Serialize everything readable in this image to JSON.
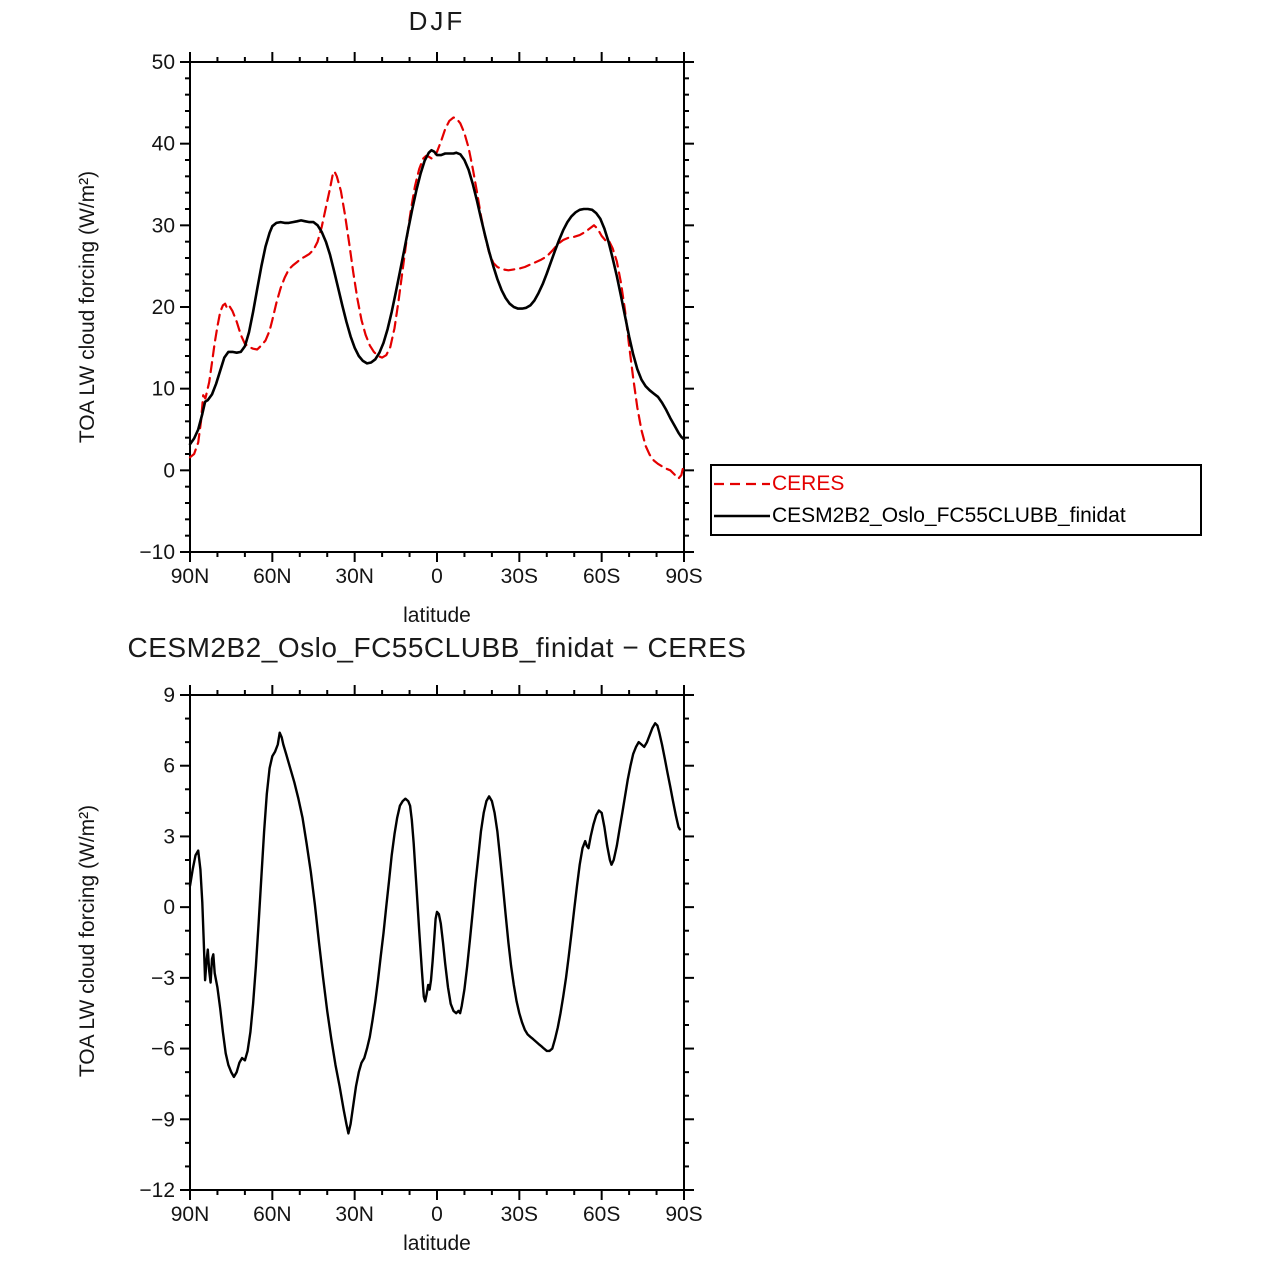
{
  "figure": {
    "background": "#ffffff",
    "frame_color": "#000000",
    "text_color": "#141414"
  },
  "chart_data": [
    {
      "type": "line",
      "title": "DJF",
      "xlabel": "latitude",
      "ylabel": "TOA LW cloud forcing (W/m²)",
      "xlim": [
        90,
        -90
      ],
      "ylim": [
        -10,
        50
      ],
      "xticks": [
        90,
        60,
        30,
        0,
        -30,
        -60,
        -90
      ],
      "xticklabels": [
        "90N",
        "60N",
        "30N",
        "0",
        "30S",
        "60S",
        "90S"
      ],
      "x_minor_interval": 10,
      "yticks": [
        -10,
        0,
        10,
        20,
        30,
        40,
        50
      ],
      "yticklabels": [
        "−10",
        "0",
        "10",
        "20",
        "30",
        "40",
        "50"
      ],
      "y_minor_per_major": 4,
      "grid": false,
      "legend_position": "outside-right-below",
      "series": [
        {
          "name": "CERES",
          "color": "#e40000",
          "dash": [
            10,
            6
          ],
          "width": 2.2,
          "x": [
            90,
            88.5,
            87,
            86,
            85.2,
            84.4,
            83,
            82,
            81,
            80,
            79,
            78,
            77.2,
            76.4,
            75.6,
            74.5,
            73,
            71.5,
            70,
            68.5,
            67,
            65.5,
            64,
            62.5,
            61,
            60,
            58.5,
            57,
            55.5,
            54,
            52.5,
            51,
            49.5,
            48,
            46.5,
            45,
            43.5,
            42,
            40.5,
            39,
            38,
            37.4,
            36.5,
            35,
            33.5,
            32,
            30.5,
            29,
            27.5,
            26,
            24.5,
            23,
            21.5,
            20,
            18.5,
            17,
            15.5,
            14,
            12.5,
            11,
            9.5,
            8,
            6.5,
            5,
            4,
            3,
            2,
            1,
            0,
            -1.5,
            -3,
            -4.5,
            -6,
            -7,
            -8.5,
            -10,
            -11.5,
            -13,
            -14.5,
            -16,
            -17.5,
            -19,
            -20.5,
            -22,
            -24,
            -26,
            -28,
            -30,
            -32,
            -34,
            -36,
            -38,
            -40,
            -42,
            -44,
            -46,
            -48,
            -50,
            -52,
            -54,
            -56,
            -57.2,
            -58.5,
            -60,
            -61.5,
            -62.5,
            -64,
            -65.5,
            -67,
            -68.5,
            -70,
            -71.5,
            -73,
            -74.5,
            -76,
            -77.5,
            -79,
            -80.5,
            -82,
            -83.5,
            -85,
            -86.5,
            -88,
            -89,
            -90
          ],
          "values": [
            1.6,
            2.0,
            3.4,
            6.0,
            9.2,
            8.8,
            10.8,
            13.2,
            15.6,
            17.6,
            19.4,
            20.2,
            20.4,
            19.8,
            20.1,
            19.5,
            18.2,
            16.6,
            15.5,
            15.1,
            14.9,
            14.8,
            15.3,
            15.9,
            17.1,
            18.4,
            20.5,
            22.3,
            23.6,
            24.6,
            25.1,
            25.5,
            25.9,
            26.2,
            26.5,
            27.0,
            28.0,
            29.8,
            32.2,
            34.5,
            36.2,
            36.6,
            36.0,
            34.2,
            31.2,
            27.8,
            24.2,
            21.0,
            18.4,
            16.6,
            15.3,
            14.5,
            14.0,
            13.8,
            14.1,
            15.1,
            17.4,
            20.8,
            24.6,
            28.4,
            31.9,
            34.8,
            36.9,
            38.2,
            38.5,
            38.4,
            38.2,
            38.4,
            39.0,
            40.3,
            41.8,
            42.8,
            43.2,
            43.1,
            42.5,
            41.3,
            39.5,
            37.0,
            34.2,
            31.2,
            28.7,
            26.7,
            25.4,
            24.9,
            24.6,
            24.5,
            24.6,
            24.7,
            24.9,
            25.2,
            25.5,
            25.8,
            26.2,
            26.9,
            27.7,
            28.2,
            28.5,
            28.6,
            28.8,
            29.2,
            29.7,
            30.0,
            29.6,
            28.7,
            28.1,
            28.2,
            27.2,
            25.6,
            23.0,
            19.6,
            15.3,
            11.3,
            7.7,
            4.9,
            3.0,
            1.9,
            1.2,
            0.8,
            0.5,
            0.2,
            0.0,
            -0.5,
            -1.0,
            -0.6,
            0.8
          ]
        },
        {
          "name": "CESM2B2_Oslo_FC55CLUBB_finidat",
          "color": "#000000",
          "dash": null,
          "width": 2.6,
          "x": [
            90,
            88.5,
            87,
            85.5,
            84.5,
            83.5,
            82,
            80.5,
            79,
            77.5,
            76,
            74.5,
            73,
            71.5,
            70,
            68.5,
            67,
            65.5,
            64,
            62.5,
            61,
            60,
            58.5,
            57,
            55.5,
            54,
            52.5,
            51,
            49.5,
            48,
            46.5,
            45,
            43.5,
            42,
            40.5,
            39,
            37.5,
            36,
            34.5,
            33,
            31.5,
            30,
            28.5,
            27,
            25.5,
            24,
            22.5,
            21,
            19.5,
            18,
            16.5,
            15,
            13.5,
            12,
            10.5,
            9,
            7.5,
            6,
            4.5,
            3,
            2,
            1,
            0,
            -1.5,
            -3,
            -4.5,
            -6,
            -7,
            -8.5,
            -10,
            -11.5,
            -13,
            -14.5,
            -16,
            -17.5,
            -19,
            -20.5,
            -22,
            -23.5,
            -25,
            -26.5,
            -28,
            -29.5,
            -31,
            -32.5,
            -34,
            -35.5,
            -37,
            -38.5,
            -40,
            -41.5,
            -43,
            -44.5,
            -46,
            -47.5,
            -49,
            -50.5,
            -52,
            -53.5,
            -55,
            -56.5,
            -58,
            -59.5,
            -61,
            -62.5,
            -64,
            -65.5,
            -67,
            -68.5,
            -70,
            -71.5,
            -73,
            -74.5,
            -76,
            -77.5,
            -79,
            -80.5,
            -82,
            -83.5,
            -85,
            -86.5,
            -88,
            -89,
            -90
          ],
          "values": [
            3.2,
            3.9,
            5.0,
            6.9,
            8.4,
            8.6,
            9.3,
            10.6,
            12.2,
            13.8,
            14.5,
            14.5,
            14.4,
            14.5,
            15.2,
            16.9,
            19.4,
            22.2,
            25.0,
            27.4,
            29.1,
            29.9,
            30.3,
            30.4,
            30.3,
            30.3,
            30.4,
            30.5,
            30.6,
            30.5,
            30.4,
            30.4,
            30.0,
            29.2,
            28.0,
            26.4,
            24.4,
            22.3,
            20.2,
            18.2,
            16.4,
            15.0,
            14.0,
            13.4,
            13.1,
            13.2,
            13.6,
            14.4,
            15.6,
            17.3,
            19.4,
            21.8,
            24.3,
            26.9,
            29.5,
            32.0,
            34.3,
            36.3,
            37.9,
            38.9,
            39.2,
            39.0,
            38.6,
            38.6,
            38.8,
            38.8,
            38.8,
            38.9,
            38.7,
            38.0,
            36.8,
            35.1,
            33.1,
            30.9,
            28.8,
            26.8,
            25.0,
            23.4,
            22.1,
            21.1,
            20.4,
            20.0,
            19.8,
            19.8,
            19.9,
            20.2,
            20.8,
            21.7,
            22.8,
            24.1,
            25.5,
            26.9,
            28.2,
            29.4,
            30.4,
            31.1,
            31.6,
            31.9,
            32.0,
            32.0,
            31.9,
            31.5,
            30.8,
            29.6,
            28.0,
            26.0,
            23.8,
            21.4,
            18.9,
            16.4,
            14.2,
            12.4,
            11.1,
            10.3,
            9.8,
            9.4,
            9.0,
            8.3,
            7.4,
            6.4,
            5.5,
            4.6,
            4.1,
            3.8
          ]
        }
      ]
    },
    {
      "type": "line",
      "title": "CESM2B2_Oslo_FC55CLUBB_finidat − CERES",
      "xlabel": "latitude",
      "ylabel": "TOA LW cloud forcing (W/m²)",
      "xlim": [
        90,
        -90
      ],
      "ylim": [
        -12,
        9
      ],
      "xticks": [
        90,
        60,
        30,
        0,
        -30,
        -60,
        -90
      ],
      "xticklabels": [
        "90N",
        "60N",
        "30N",
        "0",
        "30S",
        "60S",
        "90S"
      ],
      "x_minor_interval": 10,
      "yticks": [
        -12,
        -9,
        -6,
        -3,
        0,
        3,
        6,
        9
      ],
      "yticklabels": [
        "−12",
        "−9",
        "−6",
        "−3",
        "0",
        "3",
        "6",
        "9"
      ],
      "y_minor_per_major": 2,
      "grid": false,
      "series": [
        {
          "name": "CESM2B2_Oslo_FC55CLUBB_finidat − CERES",
          "color": "#000000",
          "dash": null,
          "width": 2.4,
          "x": [
            90,
            89,
            88,
            87,
            86.2,
            85.5,
            85,
            84.5,
            84,
            83.5,
            83,
            82.5,
            82,
            81.5,
            81,
            80,
            79,
            78,
            77,
            76,
            75,
            74,
            73,
            72,
            71,
            70,
            69,
            68,
            67,
            66,
            65,
            64,
            63,
            62,
            61,
            60,
            59,
            58,
            57.3,
            56.6,
            56,
            55,
            53.5,
            52,
            50.5,
            49,
            47.5,
            46,
            44.5,
            43,
            41.5,
            40,
            38.5,
            37,
            35.5,
            34,
            33,
            32.3,
            31.5,
            30.5,
            29.5,
            28.5,
            27.5,
            26.5,
            25.5,
            24.5,
            23.5,
            22.5,
            21.5,
            20.5,
            19.5,
            18.5,
            17.5,
            16.5,
            15.5,
            14.5,
            13.5,
            12.5,
            11.5,
            10.5,
            9.8,
            9.2,
            8.5,
            7.5,
            6.5,
            5.5,
            4.8,
            4.3,
            3.8,
            3.2,
            2.7,
            2.2,
            1.6,
            1,
            0.5,
            0,
            -0.7,
            -1.4,
            -2.2,
            -3,
            -4,
            -5,
            -6,
            -7,
            -7.8,
            -8.4,
            -9,
            -10,
            -11,
            -12,
            -13,
            -14,
            -15,
            -16,
            -17,
            -18,
            -19,
            -20,
            -21,
            -22,
            -23,
            -24,
            -25,
            -26,
            -27,
            -28,
            -29,
            -30,
            -31,
            -32,
            -33,
            -34,
            -35,
            -36,
            -37,
            -38,
            -39,
            -40,
            -41,
            -42,
            -43,
            -44,
            -45,
            -46,
            -47,
            -48,
            -49,
            -50,
            -51,
            -52,
            -53,
            -54,
            -54.6,
            -55.2,
            -56,
            -57,
            -58,
            -59,
            -60,
            -61,
            -62,
            -63,
            -63.6,
            -64.4,
            -65.5,
            -66.5,
            -67.5,
            -68.5,
            -69.5,
            -70.5,
            -71.5,
            -72.5,
            -73.5,
            -74.5,
            -75.5,
            -76.5,
            -77.5,
            -78.5,
            -79.5,
            -80.3,
            -81,
            -82,
            -83,
            -84,
            -85,
            -86,
            -87,
            -88,
            -88.5
          ],
          "values": [
            0.9,
            1.6,
            2.2,
            2.4,
            1.6,
            0.2,
            -1.4,
            -3.1,
            -2.3,
            -1.8,
            -2.7,
            -3.2,
            -2.2,
            -2.0,
            -2.8,
            -3.4,
            -4.3,
            -5.3,
            -6.2,
            -6.7,
            -7.0,
            -7.2,
            -7.0,
            -6.6,
            -6.4,
            -6.5,
            -6.1,
            -5.3,
            -4.1,
            -2.5,
            -0.7,
            1.3,
            3.2,
            4.8,
            5.9,
            6.4,
            6.6,
            6.9,
            7.4,
            7.2,
            6.9,
            6.5,
            5.9,
            5.3,
            4.6,
            3.8,
            2.7,
            1.5,
            0.1,
            -1.5,
            -3.0,
            -4.4,
            -5.6,
            -6.7,
            -7.6,
            -8.6,
            -9.2,
            -9.6,
            -9.2,
            -8.4,
            -7.6,
            -7.0,
            -6.6,
            -6.4,
            -6.0,
            -5.5,
            -4.8,
            -4.0,
            -3.1,
            -2.1,
            -1.1,
            0.0,
            1.1,
            2.2,
            3.1,
            3.8,
            4.3,
            4.5,
            4.6,
            4.5,
            4.3,
            3.7,
            2.7,
            0.9,
            -1.0,
            -2.7,
            -3.8,
            -4.0,
            -3.7,
            -3.3,
            -3.5,
            -3.1,
            -2.3,
            -1.3,
            -0.5,
            -0.2,
            -0.3,
            -0.7,
            -1.5,
            -2.4,
            -3.4,
            -4.1,
            -4.4,
            -4.5,
            -4.4,
            -4.5,
            -4.2,
            -3.5,
            -2.5,
            -1.4,
            -0.2,
            1.0,
            2.1,
            3.2,
            4.0,
            4.5,
            4.7,
            4.5,
            4.0,
            3.2,
            2.1,
            0.9,
            -0.3,
            -1.5,
            -2.5,
            -3.3,
            -4.0,
            -4.5,
            -4.9,
            -5.2,
            -5.4,
            -5.5,
            -5.6,
            -5.7,
            -5.8,
            -5.9,
            -6.0,
            -6.1,
            -6.1,
            -6.0,
            -5.6,
            -5.1,
            -4.5,
            -3.8,
            -3.0,
            -2.1,
            -1.1,
            -0.1,
            0.9,
            1.8,
            2.5,
            2.8,
            2.6,
            2.5,
            3.0,
            3.5,
            3.9,
            4.1,
            4.0,
            3.4,
            2.6,
            2.0,
            1.8,
            2.0,
            2.6,
            3.3,
            4.0,
            4.7,
            5.4,
            6.0,
            6.5,
            6.8,
            7.0,
            6.9,
            6.8,
            7.0,
            7.3,
            7.6,
            7.8,
            7.7,
            7.4,
            6.9,
            6.3,
            5.7,
            5.1,
            4.5,
            3.9,
            3.4,
            3.3
          ]
        }
      ]
    }
  ],
  "legend": {
    "entries": [
      "CERES",
      "CESM2B2_Oslo_FC55CLUBB_finidat"
    ]
  }
}
